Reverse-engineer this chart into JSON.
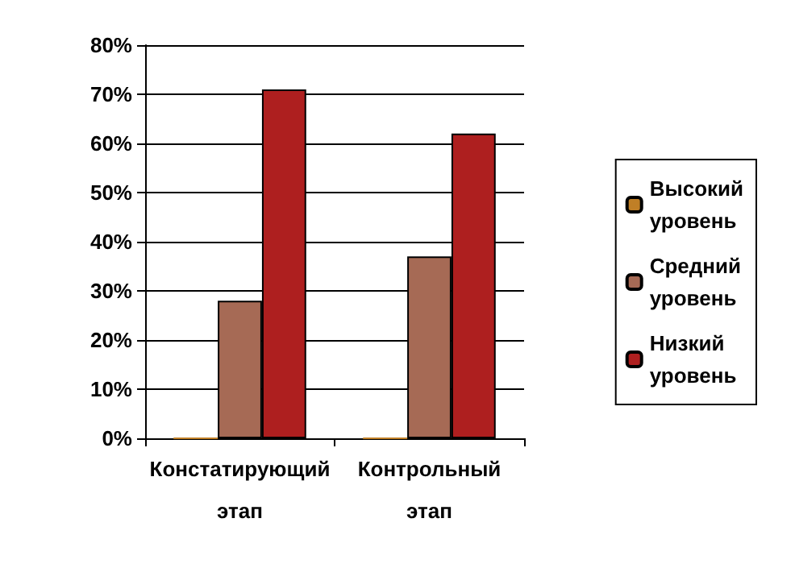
{
  "chart_data": {
    "type": "bar",
    "categories": [
      "Констатирующий этап",
      "Контрольный этап"
    ],
    "series": [
      {
        "name": "Высокий уровень",
        "color": "#c07f26",
        "values": [
          0,
          0
        ]
      },
      {
        "name": "Средний уровень",
        "color": "#a66a55",
        "values": [
          28,
          37
        ]
      },
      {
        "name": "Низкий уровень",
        "color": "#ae1f1f",
        "values": [
          71,
          62
        ]
      }
    ],
    "ylim": [
      0,
      80
    ],
    "yticks": [
      {
        "value": 0,
        "label": "0%"
      },
      {
        "value": 10,
        "label": "10%"
      },
      {
        "value": 20,
        "label": "20%"
      },
      {
        "value": 30,
        "label": "30%"
      },
      {
        "value": 40,
        "label": "40%"
      },
      {
        "value": 50,
        "label": "50%"
      },
      {
        "value": 60,
        "label": "60%"
      },
      {
        "value": 70,
        "label": "70%"
      },
      {
        "value": 80,
        "label": "80%"
      }
    ],
    "grid": "y",
    "legend": "right"
  }
}
